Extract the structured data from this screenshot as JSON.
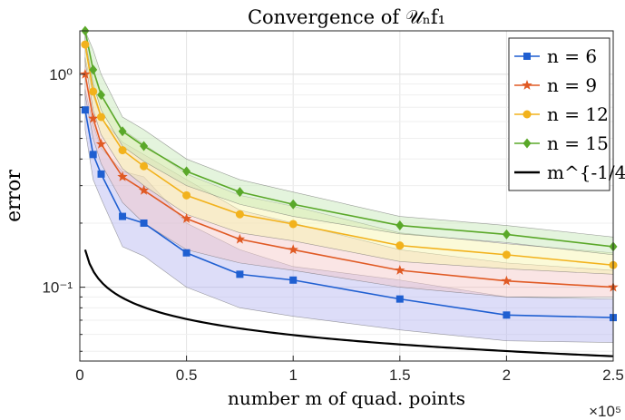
{
  "chart_data": {
    "type": "line",
    "title": "Convergence of 𝒰ₙf₁",
    "xlabel": "number m of quad. points",
    "ylabel": "error",
    "x_exponent_label": "×10⁵",
    "x_scale": 100000,
    "xlim": [
      0,
      250000
    ],
    "ylim": [
      0.045,
      1.6
    ],
    "y_scale": "log",
    "grid": true,
    "legend_position": "top-right",
    "x_ticks": [
      0,
      50000,
      100000,
      150000,
      200000,
      250000
    ],
    "x_tick_labels": [
      "0",
      "0.5",
      "1",
      "1.5",
      "2",
      "2.5"
    ],
    "y_ticks": [
      0.1,
      1
    ],
    "y_tick_labels": [
      "10⁻¹",
      "10⁰"
    ],
    "x": [
      2500,
      6250,
      10000,
      20000,
      30000,
      50000,
      75000,
      100000,
      150000,
      200000,
      250000
    ],
    "series": [
      {
        "name": "n = 6",
        "color": "#1f5fd1",
        "band_color": "#b3b3f0",
        "marker": "square",
        "values": [
          0.68,
          0.42,
          0.34,
          0.215,
          0.2,
          0.145,
          0.115,
          0.108,
          0.088,
          0.074,
          0.072
        ],
        "band_upper": [
          0.85,
          0.58,
          0.45,
          0.35,
          0.33,
          0.2,
          0.15,
          0.125,
          0.108,
          0.09,
          0.088
        ],
        "band_lower": [
          0.55,
          0.32,
          0.26,
          0.155,
          0.14,
          0.1,
          0.08,
          0.073,
          0.063,
          0.056,
          0.055
        ]
      },
      {
        "name": "n = 9",
        "color": "#e05a24",
        "band_color": "#f5c6c6",
        "marker": "star",
        "values": [
          1.0,
          0.62,
          0.47,
          0.33,
          0.285,
          0.21,
          0.168,
          0.15,
          0.12,
          0.107,
          0.1
        ],
        "band_upper": [
          1.2,
          0.8,
          0.62,
          0.48,
          0.42,
          0.32,
          0.23,
          0.2,
          0.15,
          0.13,
          0.12
        ],
        "band_lower": [
          0.8,
          0.5,
          0.38,
          0.25,
          0.2,
          0.15,
          0.13,
          0.12,
          0.1,
          0.09,
          0.09
        ]
      },
      {
        "name": "n = 12",
        "color": "#f2b21c",
        "band_color": "#f7f3a8",
        "marker": "circle",
        "values": [
          1.38,
          0.83,
          0.63,
          0.44,
          0.37,
          0.27,
          0.22,
          0.198,
          0.157,
          0.142,
          0.127
        ],
        "band_upper": [
          1.6,
          1.05,
          0.8,
          0.55,
          0.47,
          0.34,
          0.27,
          0.24,
          0.18,
          0.16,
          0.145
        ],
        "band_lower": [
          1.15,
          0.68,
          0.52,
          0.36,
          0.3,
          0.22,
          0.18,
          0.165,
          0.132,
          0.122,
          0.115
        ]
      },
      {
        "name": "n = 15",
        "color": "#5aa829",
        "band_color": "#c4e6b3",
        "marker": "diamond",
        "values": [
          1.6,
          1.05,
          0.8,
          0.54,
          0.46,
          0.35,
          0.28,
          0.245,
          0.195,
          0.177,
          0.155
        ],
        "band_upper": [
          1.6,
          1.3,
          1.0,
          0.63,
          0.55,
          0.4,
          0.32,
          0.28,
          0.215,
          0.195,
          0.172
        ],
        "band_lower": [
          1.45,
          0.9,
          0.68,
          0.46,
          0.39,
          0.3,
          0.245,
          0.215,
          0.178,
          0.162,
          0.142
        ]
      },
      {
        "name": "m^{-1/4}",
        "color": "#000000",
        "marker": "none",
        "formula": "m^{-1/4}",
        "x_start": 2500,
        "coefficient": 1.06
      }
    ]
  }
}
